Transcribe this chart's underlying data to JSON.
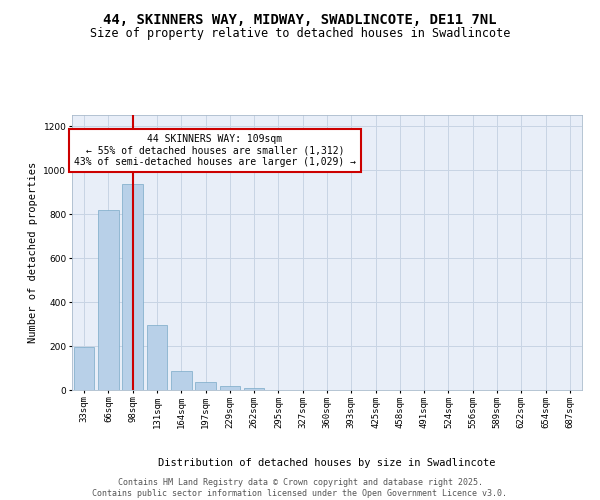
{
  "title_line1": "44, SKINNERS WAY, MIDWAY, SWADLINCOTE, DE11 7NL",
  "title_line2": "Size of property relative to detached houses in Swadlincote",
  "xlabel": "Distribution of detached houses by size in Swadlincote",
  "ylabel": "Number of detached properties",
  "bar_labels": [
    "33sqm",
    "66sqm",
    "98sqm",
    "131sqm",
    "164sqm",
    "197sqm",
    "229sqm",
    "262sqm",
    "295sqm",
    "327sqm",
    "360sqm",
    "393sqm",
    "425sqm",
    "458sqm",
    "491sqm",
    "524sqm",
    "556sqm",
    "589sqm",
    "622sqm",
    "654sqm",
    "687sqm"
  ],
  "bar_values": [
    195,
    820,
    935,
    295,
    85,
    38,
    20,
    10,
    0,
    0,
    0,
    0,
    0,
    0,
    0,
    0,
    0,
    0,
    0,
    0,
    0
  ],
  "bar_color": "#b8d0e8",
  "bar_edgecolor": "#7aaac8",
  "vline_x": 2.0,
  "annotation_text": "44 SKINNERS WAY: 109sqm\n← 55% of detached houses are smaller (1,312)\n43% of semi-detached houses are larger (1,029) →",
  "annotation_box_color": "#ffffff",
  "annotation_box_edgecolor": "#cc0000",
  "vline_color": "#cc0000",
  "ylim": [
    0,
    1250
  ],
  "yticks": [
    0,
    200,
    400,
    600,
    800,
    1000,
    1200
  ],
  "grid_color": "#c8d4e4",
  "background_color": "#e8eef8",
  "footer_text": "Contains HM Land Registry data © Crown copyright and database right 2025.\nContains public sector information licensed under the Open Government Licence v3.0.",
  "title_fontsize": 10,
  "subtitle_fontsize": 8.5,
  "axis_label_fontsize": 7.5,
  "tick_fontsize": 6.5,
  "annotation_fontsize": 7,
  "footer_fontsize": 6
}
